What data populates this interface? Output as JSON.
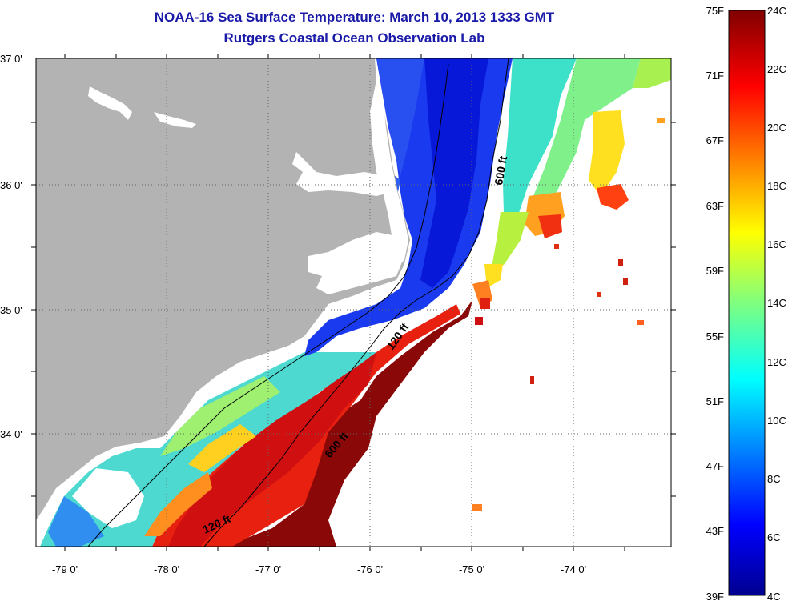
{
  "title": "NOAA-16 Sea Surface Temperature:  March 10, 2013 1333 GMT",
  "subtitle": "Rutgers Coastal Ocean Observation Lab",
  "map": {
    "lon_labels": [
      "-79 0'",
      "-78 0'",
      "-77 0'",
      "-76 0'",
      "-75 0'",
      "-74 0'"
    ],
    "lat_labels": [
      "37 0'",
      "36 0'",
      "35 0'",
      "34 0'"
    ],
    "contour_labels": [
      "600 ft",
      "120 ft",
      "600 ft",
      "120 ft"
    ],
    "colors": {
      "land": "#b3b3b3",
      "no_data": "#ffffff",
      "deep_cold": "#0a1ee0",
      "warm_stream": "#8c0a0a"
    }
  },
  "colorbar": {
    "fahrenheit_labels": [
      "75F",
      "71F",
      "67F",
      "63F",
      "59F",
      "55F",
      "51F",
      "47F",
      "43F",
      "39F"
    ],
    "celsius_labels": [
      "24C",
      "22C",
      "20C",
      "18C",
      "16C",
      "14C",
      "12C",
      "10C",
      "8C",
      "6C",
      "4C"
    ],
    "range_c": [
      4,
      24
    ],
    "range_f": [
      39,
      75
    ]
  }
}
